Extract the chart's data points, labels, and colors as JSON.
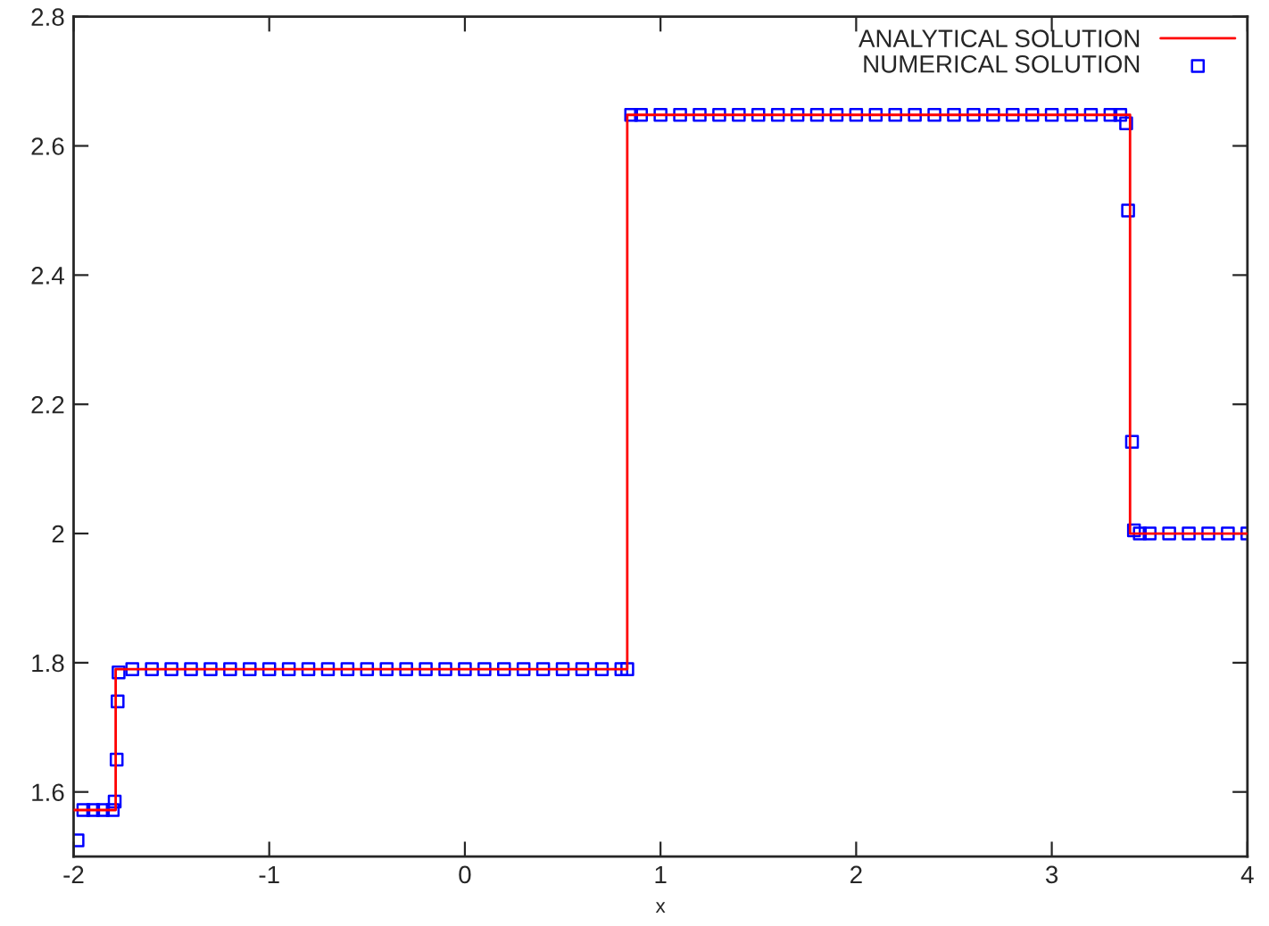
{
  "chart_data": {
    "type": "line",
    "xlabel": "x",
    "xlim": [
      -2,
      4
    ],
    "xticks": [
      -2,
      -1,
      0,
      1,
      2,
      3,
      4
    ],
    "ylim": [
      1.5,
      2.8
    ],
    "yticks": [
      1.6,
      1.8,
      2,
      2.2,
      2.4,
      2.6,
      2.8
    ],
    "grid": false,
    "legend": "top right",
    "series": [
      {
        "name": "ANALYTICAL SOLUTION",
        "color": "#ff0000",
        "line_style": "solid",
        "marker": "none",
        "x": [
          -2,
          -1.785,
          -1.785,
          0.83,
          0.83,
          3.4,
          3.4,
          4
        ],
        "values": [
          1.572,
          1.572,
          1.79,
          1.79,
          2.648,
          2.648,
          2.0,
          2.0
        ]
      },
      {
        "name": "NUMERICAL SOLUTION",
        "type": "scatter",
        "color": "#0000ff",
        "marker": "square",
        "x": [
          -1.98,
          -1.95,
          -1.9,
          -1.85,
          -1.8,
          -1.79,
          -1.78,
          -1.775,
          -1.77,
          -1.7,
          -1.6,
          -1.5,
          -1.4,
          -1.3,
          -1.2,
          -1.1,
          -1.0,
          -0.9,
          -0.8,
          -0.7,
          -0.6,
          -0.5,
          -0.4,
          -0.3,
          -0.2,
          -0.1,
          0.0,
          0.1,
          0.2,
          0.3,
          0.4,
          0.5,
          0.6,
          0.7,
          0.8,
          0.83,
          0.85,
          0.9,
          1.0,
          1.1,
          1.2,
          1.3,
          1.4,
          1.5,
          1.6,
          1.7,
          1.8,
          1.9,
          2.0,
          2.1,
          2.2,
          2.3,
          2.4,
          2.5,
          2.6,
          2.7,
          2.8,
          2.9,
          3.0,
          3.1,
          3.2,
          3.3,
          3.35,
          3.38,
          3.39,
          3.41,
          3.42,
          3.45,
          3.5,
          3.6,
          3.7,
          3.8,
          3.9,
          4.0
        ],
        "values": [
          1.525,
          1.572,
          1.572,
          1.572,
          1.572,
          1.585,
          1.65,
          1.74,
          1.785,
          1.79,
          1.79,
          1.79,
          1.79,
          1.79,
          1.79,
          1.79,
          1.79,
          1.79,
          1.79,
          1.79,
          1.79,
          1.79,
          1.79,
          1.79,
          1.79,
          1.79,
          1.79,
          1.79,
          1.79,
          1.79,
          1.79,
          1.79,
          1.79,
          1.79,
          1.79,
          1.79,
          2.648,
          2.648,
          2.648,
          2.648,
          2.648,
          2.648,
          2.648,
          2.648,
          2.648,
          2.648,
          2.648,
          2.648,
          2.648,
          2.648,
          2.648,
          2.648,
          2.648,
          2.648,
          2.648,
          2.648,
          2.648,
          2.648,
          2.648,
          2.648,
          2.648,
          2.648,
          2.648,
          2.635,
          2.5,
          2.142,
          2.005,
          2.0,
          2.0,
          2.0,
          2.0,
          2.0,
          2.0,
          2.0
        ]
      }
    ]
  }
}
